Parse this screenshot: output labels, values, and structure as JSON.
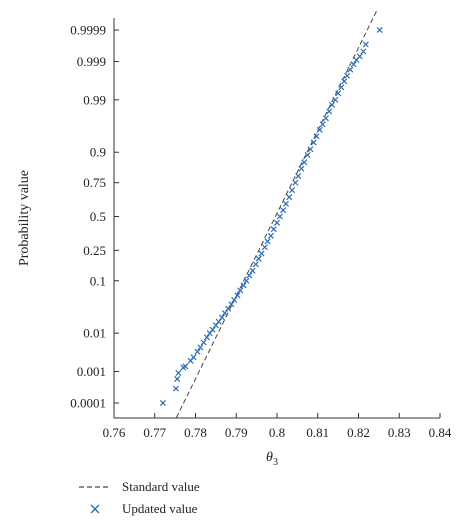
{
  "chart_data": {
    "type": "scatter",
    "title": "",
    "xlabel": "θ",
    "xlabel_sub": "3",
    "ylabel": "Probability value",
    "xlim": [
      0.76,
      0.84
    ],
    "x_ticks": [
      "0.76",
      "0.77",
      "0.78",
      "0.79",
      "0.8",
      "0.81",
      "0.82",
      "0.83",
      "0.84"
    ],
    "y_scale": "normal-probability",
    "y_ticks": [
      {
        "p": 0.0001,
        "label": "0.0001"
      },
      {
        "p": 0.001,
        "label": "0.001"
      },
      {
        "p": 0.01,
        "label": "0.01"
      },
      {
        "p": 0.1,
        "label": "0.1"
      },
      {
        "p": 0.25,
        "label": "0.25"
      },
      {
        "p": 0.5,
        "label": "0.5"
      },
      {
        "p": 0.75,
        "label": "0.75"
      },
      {
        "p": 0.9,
        "label": "0.9"
      },
      {
        "p": 0.99,
        "label": "0.99"
      },
      {
        "p": 0.999,
        "label": "0.999"
      },
      {
        "p": 0.9999,
        "label": "0.9999"
      }
    ],
    "grid": false,
    "legend_position": "bottom-left",
    "series": [
      {
        "name": "Standard value",
        "kind": "line",
        "style": "dashed",
        "color": "#444444",
        "points": [
          [
            0.7753,
            3e-05
          ],
          [
            0.8245,
            0.99998
          ]
        ]
      },
      {
        "name": "Updated value",
        "kind": "scatter",
        "marker": "x",
        "color": "#2e6db4",
        "points": [
          [
            0.772,
            0.0001
          ],
          [
            0.7752,
            0.0003
          ],
          [
            0.7755,
            0.0006
          ],
          [
            0.7758,
            0.0009
          ],
          [
            0.777,
            0.0013
          ],
          [
            0.7775,
            0.0014
          ],
          [
            0.7788,
            0.002
          ],
          [
            0.7795,
            0.0025
          ],
          [
            0.7805,
            0.0035
          ],
          [
            0.7812,
            0.0045
          ],
          [
            0.782,
            0.006
          ],
          [
            0.7828,
            0.008
          ],
          [
            0.7835,
            0.01
          ],
          [
            0.7842,
            0.012
          ],
          [
            0.785,
            0.015
          ],
          [
            0.7857,
            0.018
          ],
          [
            0.7865,
            0.022
          ],
          [
            0.7872,
            0.027
          ],
          [
            0.788,
            0.033
          ],
          [
            0.7888,
            0.04
          ],
          [
            0.7895,
            0.048
          ],
          [
            0.7903,
            0.058
          ],
          [
            0.791,
            0.07
          ],
          [
            0.7918,
            0.085
          ],
          [
            0.7925,
            0.1
          ],
          [
            0.7932,
            0.12
          ],
          [
            0.794,
            0.14
          ],
          [
            0.7948,
            0.17
          ],
          [
            0.7955,
            0.2
          ],
          [
            0.7962,
            0.23
          ],
          [
            0.797,
            0.27
          ],
          [
            0.7977,
            0.31
          ],
          [
            0.7985,
            0.35
          ],
          [
            0.7992,
            0.4
          ],
          [
            0.8,
            0.45
          ],
          [
            0.8007,
            0.5
          ],
          [
            0.8015,
            0.55
          ],
          [
            0.8022,
            0.6
          ],
          [
            0.803,
            0.65
          ],
          [
            0.8037,
            0.7
          ],
          [
            0.8045,
            0.75
          ],
          [
            0.8052,
            0.79
          ],
          [
            0.806,
            0.83
          ],
          [
            0.8067,
            0.86
          ],
          [
            0.8075,
            0.89
          ],
          [
            0.8082,
            0.91
          ],
          [
            0.809,
            0.93
          ],
          [
            0.8097,
            0.945
          ],
          [
            0.8105,
            0.958
          ],
          [
            0.8112,
            0.967
          ],
          [
            0.812,
            0.975
          ],
          [
            0.8128,
            0.982
          ],
          [
            0.8135,
            0.987
          ],
          [
            0.8143,
            0.99
          ],
          [
            0.815,
            0.993
          ],
          [
            0.8158,
            0.995
          ],
          [
            0.8165,
            0.9965
          ],
          [
            0.8172,
            0.9975
          ],
          [
            0.818,
            0.9983
          ],
          [
            0.8188,
            0.9988
          ],
          [
            0.8195,
            0.9991
          ],
          [
            0.8203,
            0.9993
          ],
          [
            0.8212,
            0.9995
          ],
          [
            0.8218,
            0.9997
          ],
          [
            0.8252,
            0.9999
          ]
        ]
      }
    ]
  },
  "legend": {
    "items": [
      {
        "label": "Standard value"
      },
      {
        "label": "Updated value"
      }
    ]
  }
}
